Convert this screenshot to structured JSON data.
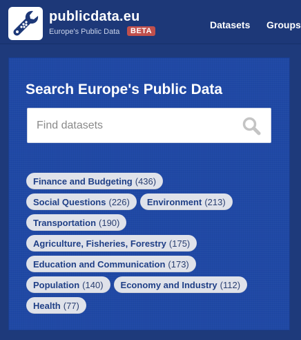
{
  "header": {
    "site_name": "publicdata.eu",
    "tagline": "Europe's Public Data",
    "badge": "BETA",
    "nav": [
      {
        "label": "Datasets"
      },
      {
        "label": "Groups"
      }
    ]
  },
  "search": {
    "title": "Search Europe's Public Data",
    "placeholder": "Find datasets"
  },
  "tags": [
    {
      "name": "Finance and Budgeting",
      "count": "(436)"
    },
    {
      "name": "Social Questions",
      "count": "(226)"
    },
    {
      "name": "Environment",
      "count": "(213)"
    },
    {
      "name": "Transportation",
      "count": "(190)"
    },
    {
      "name": "Agriculture, Fisheries, Forestry",
      "count": "(175)"
    },
    {
      "name": "Education and Communication",
      "count": "(173)"
    },
    {
      "name": "Population",
      "count": "(140)"
    },
    {
      "name": "Economy and Industry",
      "count": "(112)"
    },
    {
      "name": "Health",
      "count": "(77)"
    }
  ],
  "colors": {
    "header_bg": "#1d3878",
    "panel_bg": "#1f48a5",
    "beta_badge": "#c0504d",
    "tag_bg": "#dfe2ea",
    "tag_text": "#1f3f86"
  },
  "icons": {
    "logo": "wrench-data-logo-icon",
    "search": "search-icon"
  }
}
